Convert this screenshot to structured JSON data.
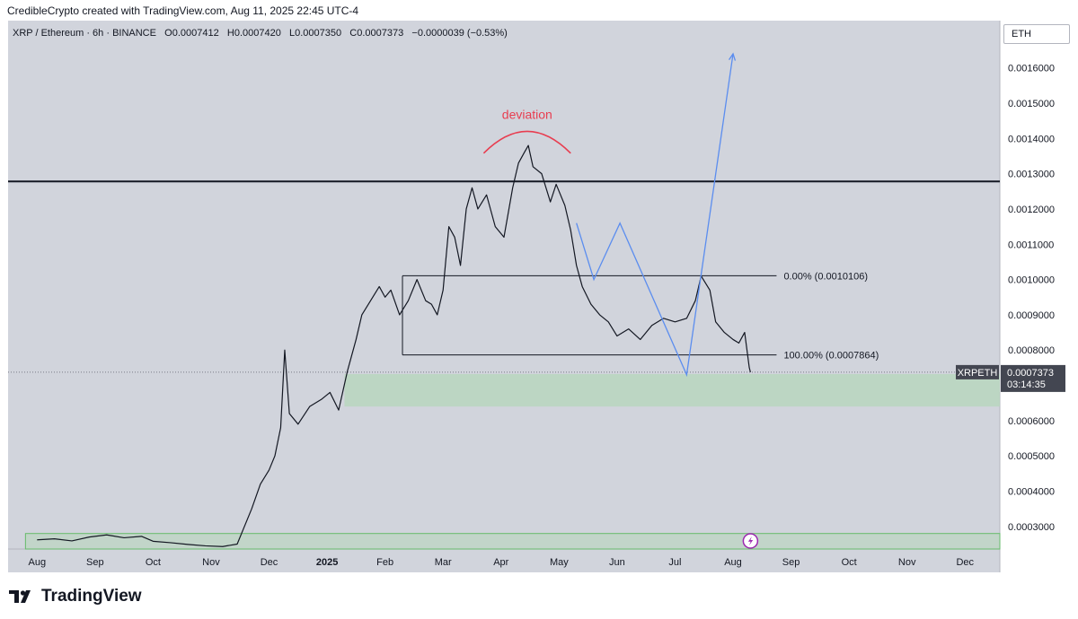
{
  "header": {
    "credit": "CredibleCrypto created with TradingView.com, Aug 11, 2025 22:45 UTC-4",
    "symbol_button": "ETH"
  },
  "legend": {
    "title": "XRP / Ethereum · 6h · BINANCE",
    "o_label": "O",
    "o_value": "0.0007412",
    "h_label": "H",
    "h_value": "0.0007420",
    "l_label": "L",
    "l_value": "0.0007350",
    "c_label": "C",
    "c_value": "0.0007373",
    "change": "−0.0000039 (−0.53%)"
  },
  "branding": {
    "name": "TradingView"
  },
  "colors": {
    "plot_bg": "#d1d4dc",
    "price_line": "#131722",
    "support_zone": "#b7d6bd",
    "support_border": "#66bb6a",
    "projection": "#5b8def",
    "deviation": "#e83d50",
    "tag_bg": "#434651"
  },
  "chart_data": {
    "type": "line",
    "symbol": "XRPETH",
    "interval": "6h",
    "exchange": "BINANCE",
    "y_ticks": [
      0.0003,
      0.0004,
      0.0005,
      0.0006,
      0.0007,
      0.0008,
      0.0009,
      0.001,
      0.0011,
      0.0012,
      0.0013,
      0.0014,
      0.0015,
      0.0016
    ],
    "y_tick_labels": [
      "0.0003000",
      "0.0004000",
      "0.0005000",
      "0.0006000",
      "0.0007000",
      "0.0008000",
      "0.0009000",
      "0.0010000",
      "0.0011000",
      "0.0012000",
      "0.0013000",
      "0.0014000",
      "0.0015000",
      "0.0016000"
    ],
    "y_range": [
      0.000236,
      0.001734
    ],
    "x_range": [
      -0.5,
      16.6
    ],
    "x_tick_labels": [
      "Aug",
      "Sep",
      "Oct",
      "Nov",
      "Dec",
      "2025",
      "Feb",
      "Mar",
      "Apr",
      "May",
      "Jun",
      "Jul",
      "Aug",
      "Sep",
      "Oct",
      "Nov",
      "Dec"
    ],
    "price_series": [
      [
        0,
        0.000262
      ],
      [
        0.3,
        0.000265
      ],
      [
        0.6,
        0.000259
      ],
      [
        0.9,
        0.00027
      ],
      [
        1.2,
        0.000276
      ],
      [
        1.5,
        0.000268
      ],
      [
        1.8,
        0.000272
      ],
      [
        2.0,
        0.000258
      ],
      [
        2.3,
        0.000254
      ],
      [
        2.6,
        0.000249
      ],
      [
        2.9,
        0.000245
      ],
      [
        3.2,
        0.000243
      ],
      [
        3.45,
        0.00025
      ],
      [
        3.7,
        0.00035
      ],
      [
        3.85,
        0.00042
      ],
      [
        4.0,
        0.00046
      ],
      [
        4.1,
        0.0005
      ],
      [
        4.2,
        0.00058
      ],
      [
        4.27,
        0.0008
      ],
      [
        4.35,
        0.00062
      ],
      [
        4.5,
        0.00059
      ],
      [
        4.7,
        0.00064
      ],
      [
        4.9,
        0.00066
      ],
      [
        5.05,
        0.00068
      ],
      [
        5.2,
        0.00063
      ],
      [
        5.35,
        0.00074
      ],
      [
        5.5,
        0.00083
      ],
      [
        5.6,
        0.0009
      ],
      [
        5.75,
        0.00094
      ],
      [
        5.9,
        0.00098
      ],
      [
        6.0,
        0.00095
      ],
      [
        6.1,
        0.00097
      ],
      [
        6.25,
        0.0009
      ],
      [
        6.4,
        0.00094
      ],
      [
        6.55,
        0.001
      ],
      [
        6.7,
        0.00094
      ],
      [
        6.8,
        0.00093
      ],
      [
        6.9,
        0.0009
      ],
      [
        7.0,
        0.00097
      ],
      [
        7.1,
        0.00115
      ],
      [
        7.2,
        0.00112
      ],
      [
        7.3,
        0.00104
      ],
      [
        7.4,
        0.0012
      ],
      [
        7.5,
        0.00126
      ],
      [
        7.6,
        0.0012
      ],
      [
        7.75,
        0.00124
      ],
      [
        7.9,
        0.00115
      ],
      [
        8.05,
        0.00112
      ],
      [
        8.2,
        0.00126
      ],
      [
        8.3,
        0.00133
      ],
      [
        8.4,
        0.00136
      ],
      [
        8.47,
        0.00138
      ],
      [
        8.55,
        0.00132
      ],
      [
        8.7,
        0.0013
      ],
      [
        8.85,
        0.00122
      ],
      [
        8.95,
        0.00127
      ],
      [
        9.1,
        0.00121
      ],
      [
        9.2,
        0.00114
      ],
      [
        9.3,
        0.00104
      ],
      [
        9.4,
        0.00098
      ],
      [
        9.55,
        0.00093
      ],
      [
        9.7,
        0.0009
      ],
      [
        9.85,
        0.00088
      ],
      [
        10.0,
        0.00084
      ],
      [
        10.2,
        0.00086
      ],
      [
        10.4,
        0.00083
      ],
      [
        10.6,
        0.00087
      ],
      [
        10.8,
        0.00089
      ],
      [
        11.0,
        0.00088
      ],
      [
        11.2,
        0.00089
      ],
      [
        11.35,
        0.00094
      ],
      [
        11.45,
        0.00101
      ],
      [
        11.6,
        0.00097
      ],
      [
        11.7,
        0.00088
      ],
      [
        11.85,
        0.00085
      ],
      [
        12.0,
        0.00083
      ],
      [
        12.1,
        0.00082
      ],
      [
        12.2,
        0.00085
      ],
      [
        12.28,
        0.00075
      ],
      [
        12.3,
        0.0007373
      ]
    ],
    "last_price_label": "0.0007373",
    "countdown": "03:14:35",
    "resistance_level": 0.001278,
    "fib_levels": [
      {
        "label": "0.00% (0.0010106)",
        "value": 0.0010106,
        "x_start": 6.3,
        "x_end": 12.75
      },
      {
        "label": "100.00% (0.0007864)",
        "value": 0.0007864,
        "x_start": 6.3,
        "x_end": 12.75
      }
    ],
    "support_zone": [
      0.00064,
      0.000732
    ],
    "lower_zone": [
      0.000236,
      0.00028
    ],
    "projection_path": [
      [
        9.3,
        0.00116
      ],
      [
        9.6,
        0.001
      ],
      [
        10.05,
        0.00116
      ],
      [
        11.2,
        0.00073
      ],
      [
        12.0,
        0.00164
      ]
    ],
    "deviation_arc": {
      "x_start": 7.7,
      "x_end": 9.2,
      "y_base": 0.001358,
      "y_peak": 0.00142
    },
    "annotations": [
      "deviation"
    ]
  }
}
